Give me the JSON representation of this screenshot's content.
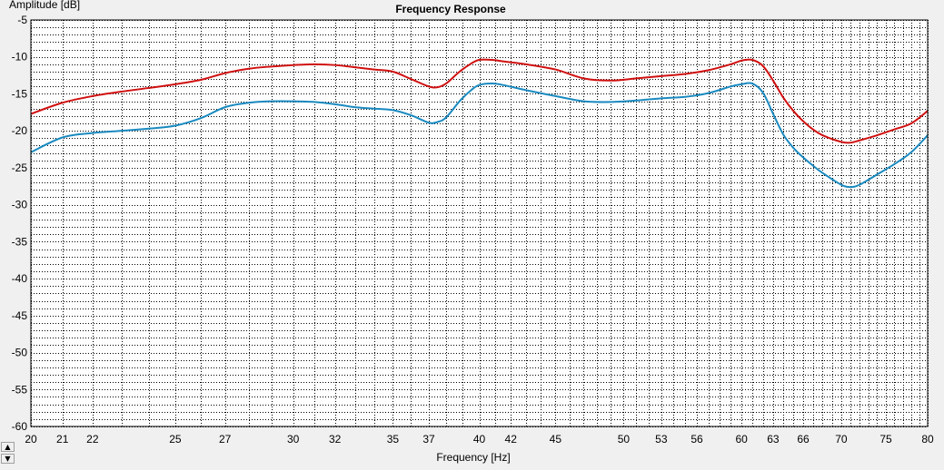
{
  "chart_data": {
    "type": "line",
    "title": "Frequency Response",
    "xlabel": "Frequency [Hz]",
    "ylabel": "Amplitude [dB]",
    "x_scale": "log",
    "xlim": [
      20,
      80
    ],
    "ylim": [
      -60,
      -5
    ],
    "grid": true,
    "x_ticks": [
      20,
      21,
      22,
      25,
      27,
      30,
      32,
      35,
      37,
      40,
      42,
      45,
      50,
      53,
      56,
      60,
      63,
      66,
      70,
      75,
      80
    ],
    "y_ticks": [
      -5,
      -10,
      -15,
      -20,
      -25,
      -30,
      -35,
      -40,
      -45,
      -50,
      -55,
      -60
    ],
    "series": [
      {
        "color": "#d01010",
        "x": [
          20,
          21,
          22,
          23,
          24,
          25,
          26,
          27,
          28,
          29,
          30,
          31,
          32,
          33,
          34,
          35,
          36,
          37,
          37.5,
          38,
          38.8,
          39.5,
          40,
          40.8,
          41.5,
          43,
          45,
          47,
          49,
          51,
          53,
          55,
          57,
          59,
          60,
          61,
          62,
          63,
          64,
          65,
          66,
          67,
          68,
          70,
          71,
          72,
          74,
          76,
          78,
          80
        ],
        "y": [
          -17.7,
          -16.2,
          -15.3,
          -14.7,
          -14.2,
          -13.7,
          -13.1,
          -12.2,
          -11.6,
          -11.3,
          -11.1,
          -11.0,
          -11.1,
          -11.4,
          -11.7,
          -12.0,
          -13.0,
          -14.0,
          -14.1,
          -13.6,
          -12.0,
          -10.9,
          -10.4,
          -10.4,
          -10.6,
          -11.0,
          -11.7,
          -12.9,
          -13.2,
          -12.9,
          -12.6,
          -12.3,
          -11.8,
          -11.0,
          -10.5,
          -10.4,
          -11.2,
          -13.2,
          -15.5,
          -17.3,
          -18.7,
          -19.8,
          -20.6,
          -21.5,
          -21.6,
          -21.3,
          -20.6,
          -19.8,
          -19.0,
          -17.3
        ]
      },
      {
        "color": "#1a8ac0",
        "x": [
          20,
          21,
          22,
          23,
          24,
          25,
          26,
          27,
          28,
          29,
          30,
          31,
          32,
          33,
          34,
          35,
          36,
          37,
          37.5,
          38,
          38.8,
          39.5,
          40,
          40.8,
          41.5,
          43,
          45,
          47,
          49,
          51,
          53,
          55,
          57,
          59,
          60,
          61,
          62,
          63,
          64,
          65,
          66,
          67,
          68,
          70,
          71,
          72,
          74,
          76,
          78,
          80
        ],
        "y": [
          -22.9,
          -20.9,
          -20.3,
          -20.0,
          -19.7,
          -19.3,
          -18.3,
          -16.8,
          -16.2,
          -16.0,
          -16.0,
          -16.1,
          -16.4,
          -16.8,
          -17.0,
          -17.2,
          -17.9,
          -18.9,
          -18.8,
          -18.2,
          -16.0,
          -14.5,
          -13.8,
          -13.6,
          -13.8,
          -14.5,
          -15.3,
          -16.0,
          -16.1,
          -15.9,
          -15.6,
          -15.4,
          -14.9,
          -14.0,
          -13.7,
          -13.6,
          -14.8,
          -17.7,
          -20.5,
          -22.3,
          -23.6,
          -24.7,
          -25.7,
          -27.3,
          -27.6,
          -27.3,
          -25.9,
          -24.5,
          -22.9,
          -20.6
        ]
      }
    ]
  }
}
